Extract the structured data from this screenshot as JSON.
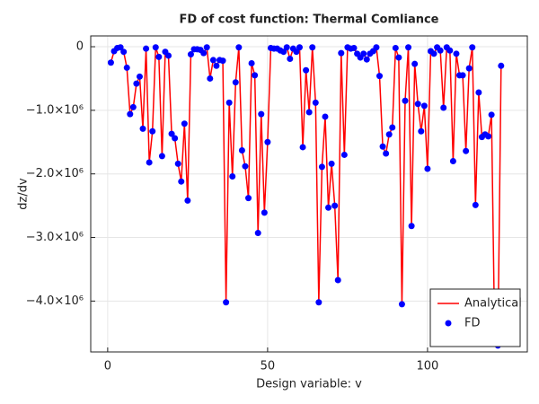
{
  "chart_data": {
    "type": "line",
    "title": "FD of cost function: Thermal Comliance",
    "x_label": "Design variable: v",
    "y_label": "dz/dv",
    "x": [
      1,
      2,
      3,
      4,
      5,
      6,
      7,
      8,
      9,
      10,
      11,
      12,
      13,
      14,
      15,
      16,
      17,
      18,
      19,
      20,
      21,
      22,
      23,
      24,
      25,
      26,
      27,
      28,
      29,
      30,
      31,
      32,
      33,
      34,
      35,
      36,
      37,
      38,
      39,
      40,
      41,
      42,
      43,
      44,
      45,
      46,
      47,
      48,
      49,
      50,
      51,
      52,
      53,
      54,
      55,
      56,
      57,
      58,
      59,
      60,
      61,
      62,
      63,
      64,
      65,
      66,
      67,
      68,
      69,
      70,
      71,
      72,
      73,
      74,
      75,
      76,
      77,
      78,
      79,
      80,
      81,
      82,
      83,
      84,
      85,
      86,
      87,
      88,
      89,
      90,
      91,
      92,
      93,
      94,
      95,
      96,
      97,
      98,
      99,
      100,
      101,
      102,
      103,
      104,
      105,
      106,
      107,
      108,
      109,
      110,
      111,
      112,
      113,
      114,
      115,
      116,
      117,
      118,
      119,
      120,
      121,
      122,
      123
    ],
    "series": [
      {
        "name": "Analytical",
        "color": "#ff0000",
        "style": "line",
        "values": [
          -250000,
          -70000,
          -20000,
          -10000,
          -80000,
          -330000,
          -1060000,
          -950000,
          -580000,
          -470000,
          -1290000,
          -30000,
          -1820000,
          -1330000,
          -10000,
          -160000,
          -1720000,
          -80000,
          -140000,
          -1370000,
          -1440000,
          -1840000,
          -2120000,
          -1210000,
          -2420000,
          -120000,
          -40000,
          -40000,
          -50000,
          -100000,
          -10000,
          -500000,
          -210000,
          -300000,
          -210000,
          -220000,
          -4020000,
          -880000,
          -2040000,
          -560000,
          -10000,
          -1630000,
          -1880000,
          -2380000,
          -260000,
          -450000,
          -2930000,
          -1060000,
          -2610000,
          -1500000,
          -20000,
          -30000,
          -30000,
          -60000,
          -80000,
          -10000,
          -190000,
          -30000,
          -80000,
          -10000,
          -1580000,
          -370000,
          -1030000,
          -10000,
          -880000,
          -4020000,
          -1890000,
          -1100000,
          -2530000,
          -1840000,
          -2500000,
          -3670000,
          -100000,
          -1700000,
          -10000,
          -30000,
          -20000,
          -110000,
          -170000,
          -110000,
          -200000,
          -110000,
          -70000,
          -10000,
          -460000,
          -1570000,
          -1680000,
          -1380000,
          -1270000,
          -20000,
          -170000,
          -4050000,
          -850000,
          -10000,
          -2820000,
          -270000,
          -900000,
          -1330000,
          -930000,
          -1920000,
          -70000,
          -110000,
          -10000,
          -60000,
          -960000,
          -10000,
          -60000,
          -1800000,
          -110000,
          -450000,
          -450000,
          -1640000,
          -340000,
          -10000,
          -2490000,
          -720000,
          -1420000,
          -1380000,
          -1410000,
          -1070000,
          -4600000,
          -4700000,
          -300000
        ]
      },
      {
        "name": "FD",
        "color": "#0000ff",
        "style": "scatter",
        "values": [
          -250000,
          -70000,
          -20000,
          -10000,
          -80000,
          -330000,
          -1060000,
          -950000,
          -580000,
          -470000,
          -1290000,
          -30000,
          -1820000,
          -1330000,
          -10000,
          -160000,
          -1720000,
          -80000,
          -140000,
          -1370000,
          -1440000,
          -1840000,
          -2120000,
          -1210000,
          -2420000,
          -120000,
          -40000,
          -40000,
          -50000,
          -100000,
          -10000,
          -500000,
          -210000,
          -300000,
          -210000,
          -220000,
          -4020000,
          -880000,
          -2040000,
          -560000,
          -10000,
          -1630000,
          -1880000,
          -2380000,
          -260000,
          -450000,
          -2930000,
          -1060000,
          -2610000,
          -1500000,
          -20000,
          -30000,
          -30000,
          -60000,
          -80000,
          -10000,
          -190000,
          -30000,
          -80000,
          -10000,
          -1580000,
          -370000,
          -1030000,
          -10000,
          -880000,
          -4020000,
          -1890000,
          -1100000,
          -2530000,
          -1840000,
          -2500000,
          -3670000,
          -100000,
          -1700000,
          -10000,
          -30000,
          -20000,
          -110000,
          -170000,
          -110000,
          -200000,
          -110000,
          -70000,
          -10000,
          -460000,
          -1570000,
          -1680000,
          -1380000,
          -1270000,
          -20000,
          -170000,
          -4050000,
          -850000,
          -10000,
          -2820000,
          -270000,
          -900000,
          -1330000,
          -930000,
          -1920000,
          -70000,
          -110000,
          -10000,
          -60000,
          -960000,
          -10000,
          -60000,
          -1800000,
          -110000,
          -450000,
          -450000,
          -1640000,
          -340000,
          -10000,
          -2490000,
          -720000,
          -1420000,
          -1380000,
          -1410000,
          -1070000,
          -4600000,
          -4700000,
          -300000
        ]
      }
    ],
    "xlim": [
      -5.3,
      131.2
    ],
    "xticks": [
      0,
      50,
      100
    ],
    "ylim": [
      -4800000,
      170000
    ],
    "yticks": [
      0,
      {
        "value": -1000000,
        "label": "−1.0×10⁶"
      },
      {
        "value": -2000000,
        "label": "−2.0×10⁶"
      },
      {
        "value": -3000000,
        "label": "−3.0×10⁶"
      },
      {
        "value": -4000000,
        "label": "−4.0×10⁶"
      }
    ],
    "grid": true,
    "legend": "lower right"
  }
}
